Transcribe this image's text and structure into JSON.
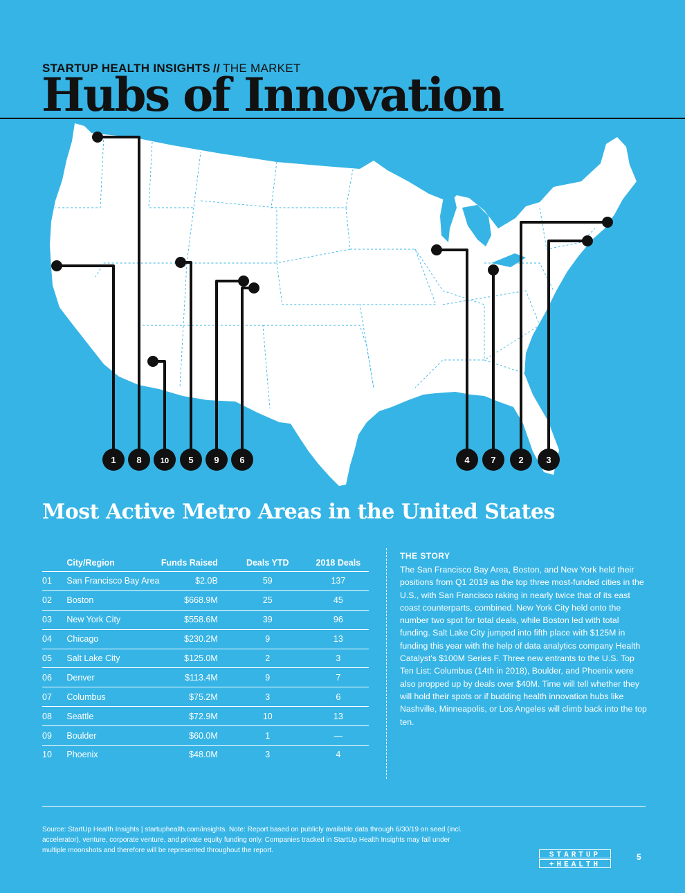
{
  "header": {
    "kicker_bold": "STARTUP HEALTH INSIGHTS",
    "kicker_slashes": "//",
    "kicker_rest": "THE MARKET",
    "title": "Hubs of Innovation"
  },
  "map": {
    "markers": [
      "1",
      "8",
      "10",
      "5",
      "9",
      "6",
      "4",
      "7",
      "2",
      "3"
    ]
  },
  "section_heading": "Most Active Metro Areas in the United States",
  "table": {
    "headers": [
      "",
      "City/Region",
      "Funds Raised",
      "Deals YTD",
      "2018 Deals"
    ],
    "rows": [
      [
        "01",
        "San Francisco Bay Area",
        "$2.0B",
        "59",
        "137"
      ],
      [
        "02",
        "Boston",
        "$668.9M",
        "25",
        "45"
      ],
      [
        "03",
        "New York City",
        "$558.6M",
        "39",
        "96"
      ],
      [
        "04",
        "Chicago",
        "$230.2M",
        "9",
        "13"
      ],
      [
        "05",
        "Salt Lake City",
        "$125.0M",
        "2",
        "3"
      ],
      [
        "06",
        "Denver",
        "$113.4M",
        "9",
        "7"
      ],
      [
        "07",
        "Columbus",
        "$75.2M",
        "3",
        "6"
      ],
      [
        "08",
        "Seattle",
        "$72.9M",
        "10",
        "13"
      ],
      [
        "09",
        "Boulder",
        "$60.0M",
        "1",
        "—"
      ],
      [
        "10",
        "Phoenix",
        "$48.0M",
        "3",
        "4"
      ]
    ]
  },
  "story": {
    "title": "THE STORY",
    "body": "The San Francisco Bay Area, Boston, and New York held their positions from Q1 2019 as the top three most-funded cities in the U.S., with San Francisco raking in nearly twice that of its east coast counterparts, combined. New York City held onto the number two spot for total deals, while Boston led with total funding. Salt Lake City jumped into fifth place with $125M in funding this year with the help of data analytics company Health Catalyst's $100M Series F. Three new entrants to the U.S. Top Ten List: Columbus (14th in 2018), Boulder, and Phoenix were also propped up by deals over $40M. Time will tell whether they will hold their spots or if budding health innovation hubs like Nashville, Minneapolis, or Los Angeles will climb back into the top ten."
  },
  "footer": {
    "source": "Source: StartUp Health Insights | startuphealth.com/insights. Note: Report based on publicly available data through 6/30/19 on seed (incl. accelerator), venture, corporate venture, and private equity funding only. Companies tracked in StartUp Health Insights may fall under multiple moonshots and therefore will be represented throughout the report.",
    "logo_line1": "STARTUP",
    "logo_line2": "+HEALTH",
    "page_number": "5"
  },
  "colors": {
    "background": "#36b4e5",
    "map_fill": "#ffffff",
    "ink": "#111111",
    "text_light": "#ffffff"
  }
}
